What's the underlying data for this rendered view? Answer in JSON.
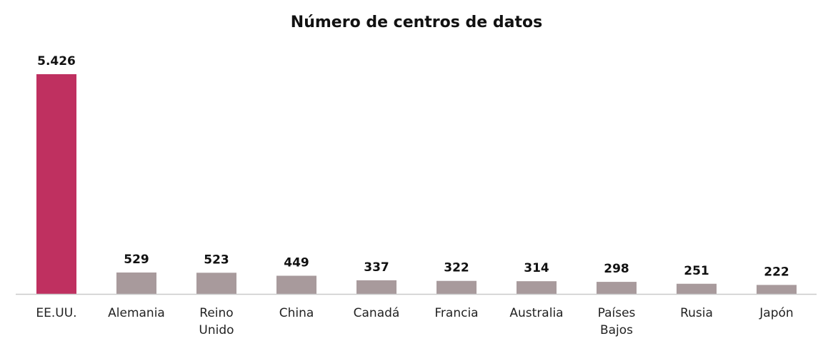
{
  "chart_data": {
    "type": "bar",
    "title": "Número de centros de datos",
    "xlabel": "",
    "ylabel": "",
    "categories": [
      "EE.UU.",
      "Alemania",
      "Reino Unido",
      "China",
      "Canadá",
      "Francia",
      "Australia",
      "Países Bajos",
      "Rusia",
      "Japón"
    ],
    "category_lines": [
      [
        "EE.UU."
      ],
      [
        "Alemania"
      ],
      [
        "Reino",
        "Unido"
      ],
      [
        "China"
      ],
      [
        "Canadá"
      ],
      [
        "Francia"
      ],
      [
        "Australia"
      ],
      [
        "Países",
        "Bajos"
      ],
      [
        "Rusia"
      ],
      [
        "Japón"
      ]
    ],
    "values": [
      5426,
      529,
      523,
      449,
      337,
      322,
      314,
      298,
      251,
      222
    ],
    "value_labels": [
      "5.426",
      "529",
      "523",
      "449",
      "337",
      "322",
      "314",
      "298",
      "251",
      "222"
    ],
    "ylim": [
      0,
      5426
    ],
    "grid": false,
    "legend": "none",
    "colors": {
      "highlight": "#bf3060",
      "default": "#a89a9c",
      "axis": "#c9c9c9",
      "text": "#111111"
    },
    "highlight_index": 0
  }
}
